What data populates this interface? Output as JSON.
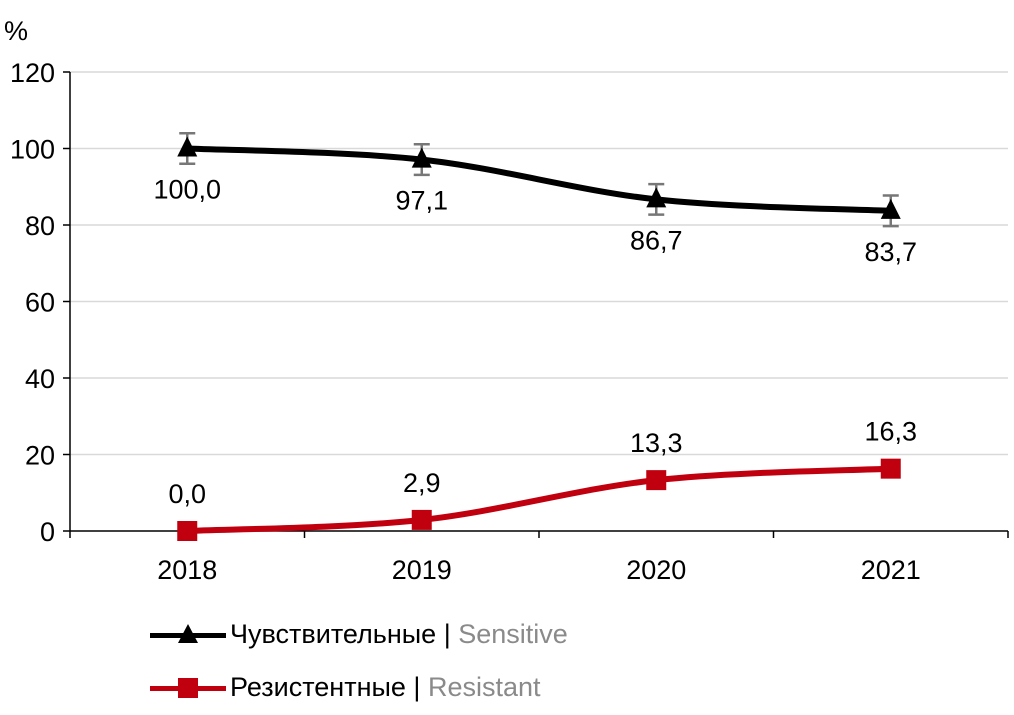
{
  "chart_data": {
    "type": "line",
    "title": "",
    "ylabel": "%",
    "xlabel": "",
    "ylim": [
      0,
      120
    ],
    "yticks": [
      "0",
      "20",
      "40",
      "60",
      "80",
      "100",
      "120"
    ],
    "categories": [
      "2018",
      "2019",
      "2020",
      "2021"
    ],
    "grid": true,
    "legend_position": "bottom-left",
    "series": [
      {
        "name": "Чувствительные",
        "name_en": "Sensitive",
        "color": "#000000",
        "marker": "triangle",
        "values": [
          100.0,
          97.1,
          86.7,
          83.7
        ],
        "labels": [
          "100,0",
          "97,1",
          "86,7",
          "83,7"
        ],
        "error": [
          4,
          4,
          4,
          4
        ]
      },
      {
        "name": "Резистентные",
        "name_en": "Resistant",
        "color": "#c0000f",
        "marker": "square",
        "values": [
          0.0,
          2.9,
          13.3,
          16.3
        ],
        "labels": [
          "0,0",
          "2,9",
          "13,3",
          "16,3"
        ]
      }
    ]
  },
  "legend": {
    "separator": "|"
  }
}
